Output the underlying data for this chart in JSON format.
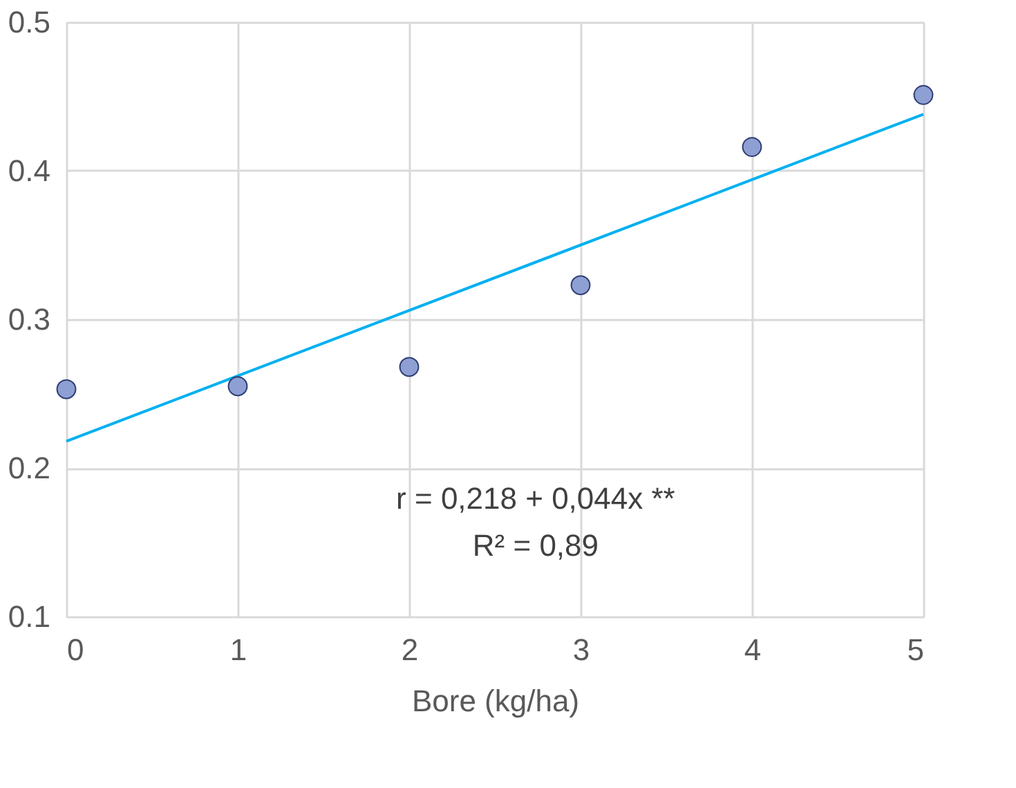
{
  "chart_data": {
    "type": "scatter",
    "xlabel": "Bore (kg/ha)",
    "x": [
      0,
      1,
      2,
      3,
      4,
      5
    ],
    "xlim": [
      0,
      5
    ],
    "xticks": [
      0,
      1,
      2,
      3,
      4,
      5
    ],
    "ylim": [
      0.1,
      0.5
    ],
    "yticks": [
      0.1,
      0.2,
      0.3,
      0.4,
      0.5
    ],
    "grid": true,
    "series": [
      {
        "color": "#8e9fd3",
        "marker": "circle",
        "values": [
          0.253,
          0.255,
          0.268,
          0.323,
          0.416,
          0.451
        ]
      },
      {
        "type": "line",
        "color": "#00b0f0",
        "line_style": "solid",
        "x": [
          0,
          5
        ],
        "values": [
          0.218,
          0.438
        ]
      }
    ],
    "annotations": [
      "r = 0,218 + 0,044x **",
      "R² = 0,89"
    ]
  }
}
